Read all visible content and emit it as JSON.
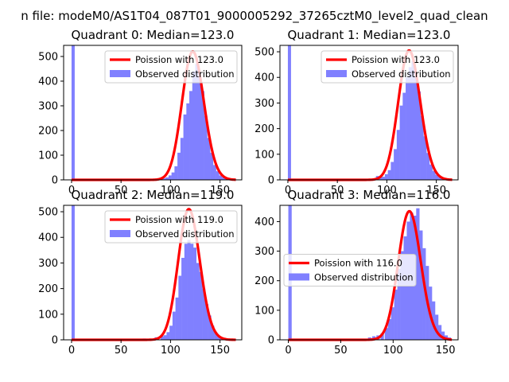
{
  "suptitle": "n file: modeM0/AS1T04_087T01_9000005292_37265cztM0_level2_quad_clean",
  "colors": {
    "poisson": "#ff0000",
    "observed": "#8080ff",
    "observed_alpha_src": "#0000ff"
  },
  "chart_data": [
    {
      "type": "bar",
      "title": "Quadrant 0: Median=123.0",
      "xlim": [
        -8,
        172
      ],
      "ylim": [
        0,
        545
      ],
      "xticks": [
        0,
        50,
        100,
        150
      ],
      "yticks": [
        0,
        100,
        200,
        300,
        400,
        500
      ],
      "legend": {
        "placement": "upper-right",
        "entries": [
          "Poission with 123.0",
          "Observed distribution"
        ]
      },
      "poisson_mean": 123.0,
      "poisson_scale": 520,
      "observed": {
        "bin_width": 3.2,
        "bins": [
          [
            0,
            545
          ],
          [
            80,
            3
          ],
          [
            83,
            3
          ],
          [
            86,
            4
          ],
          [
            89,
            4
          ],
          [
            92,
            6
          ],
          [
            95,
            10
          ],
          [
            98,
            18
          ],
          [
            101,
            30
          ],
          [
            104,
            55
          ],
          [
            107,
            110
          ],
          [
            110,
            170
          ],
          [
            113,
            265
          ],
          [
            116,
            310
          ],
          [
            119,
            360
          ],
          [
            122,
            440
          ],
          [
            125,
            470
          ],
          [
            128,
            420
          ],
          [
            131,
            360
          ],
          [
            134,
            260
          ],
          [
            137,
            170
          ],
          [
            140,
            110
          ],
          [
            143,
            60
          ],
          [
            146,
            35
          ],
          [
            149,
            18
          ],
          [
            152,
            10
          ],
          [
            155,
            5
          ],
          [
            158,
            3
          ]
        ]
      }
    },
    {
      "type": "bar",
      "title": "Quadrant 1: Median=123.0",
      "xlim": [
        -8,
        172
      ],
      "ylim": [
        0,
        525
      ],
      "xticks": [
        0,
        50,
        100,
        150
      ],
      "yticks": [
        0,
        100,
        200,
        300,
        400,
        500
      ],
      "legend": {
        "placement": "upper-right",
        "entries": [
          "Poission with 123.0",
          "Observed distribution"
        ]
      },
      "poisson_mean": 123.0,
      "poisson_scale": 505,
      "observed": {
        "bin_width": 3.2,
        "bins": [
          [
            0,
            525
          ],
          [
            80,
            3
          ],
          [
            86,
            4
          ],
          [
            89,
            15
          ],
          [
            92,
            10
          ],
          [
            95,
            12
          ],
          [
            98,
            22
          ],
          [
            101,
            38
          ],
          [
            104,
            70
          ],
          [
            107,
            120
          ],
          [
            110,
            195
          ],
          [
            113,
            290
          ],
          [
            116,
            340
          ],
          [
            119,
            400
          ],
          [
            122,
            440
          ],
          [
            125,
            465
          ],
          [
            128,
            410
          ],
          [
            131,
            345
          ],
          [
            134,
            250
          ],
          [
            137,
            170
          ],
          [
            140,
            105
          ],
          [
            143,
            60
          ],
          [
            146,
            35
          ],
          [
            149,
            20
          ],
          [
            152,
            10
          ],
          [
            155,
            5
          ]
        ]
      }
    },
    {
      "type": "bar",
      "title": "Quadrant 2: Median=119.0",
      "xlim": [
        -8,
        172
      ],
      "ylim": [
        0,
        525
      ],
      "xticks": [
        0,
        50,
        100,
        150
      ],
      "yticks": [
        0,
        100,
        200,
        300,
        400,
        500
      ],
      "legend": {
        "placement": "upper-right",
        "entries": [
          "Poission with 119.0",
          "Observed distribution"
        ]
      },
      "poisson_mean": 119.0,
      "poisson_scale": 510,
      "observed": {
        "bin_width": 3.2,
        "bins": [
          [
            0,
            525
          ],
          [
            72,
            5
          ],
          [
            78,
            4
          ],
          [
            84,
            10
          ],
          [
            90,
            14
          ],
          [
            93,
            18
          ],
          [
            96,
            30
          ],
          [
            99,
            55
          ],
          [
            102,
            110
          ],
          [
            105,
            165
          ],
          [
            108,
            250
          ],
          [
            111,
            320
          ],
          [
            114,
            375
          ],
          [
            117,
            390
          ],
          [
            120,
            375
          ],
          [
            123,
            360
          ],
          [
            126,
            300
          ],
          [
            129,
            265
          ],
          [
            132,
            200
          ],
          [
            135,
            140
          ],
          [
            138,
            95
          ],
          [
            141,
            55
          ],
          [
            144,
            30
          ],
          [
            147,
            15
          ],
          [
            150,
            8
          ],
          [
            153,
            4
          ]
        ]
      }
    },
    {
      "type": "bar",
      "title": "Quadrant 3: Median=116.0",
      "xlim": [
        -8,
        162
      ],
      "ylim": [
        0,
        455
      ],
      "xticks": [
        0,
        50,
        100,
        150
      ],
      "yticks": [
        0,
        100,
        200,
        300,
        400
      ],
      "legend": {
        "placement": "center-left",
        "entries": [
          "Poission with 116.0",
          "Observed distribution"
        ]
      },
      "poisson_mean": 116.0,
      "poisson_scale": 435,
      "observed": {
        "bin_width": 3.2,
        "bins": [
          [
            0,
            455
          ],
          [
            70,
            3
          ],
          [
            76,
            8
          ],
          [
            80,
            12
          ],
          [
            84,
            15
          ],
          [
            88,
            22
          ],
          [
            92,
            40
          ],
          [
            95,
            70
          ],
          [
            98,
            110
          ],
          [
            101,
            170
          ],
          [
            104,
            240
          ],
          [
            107,
            300
          ],
          [
            110,
            350
          ],
          [
            113,
            400
          ],
          [
            116,
            430
          ],
          [
            119,
            420
          ],
          [
            122,
            445
          ],
          [
            125,
            370
          ],
          [
            128,
            310
          ],
          [
            131,
            250
          ],
          [
            134,
            180
          ],
          [
            137,
            130
          ],
          [
            140,
            85
          ],
          [
            143,
            50
          ],
          [
            146,
            28
          ],
          [
            149,
            15
          ],
          [
            152,
            8
          ]
        ]
      }
    }
  ]
}
